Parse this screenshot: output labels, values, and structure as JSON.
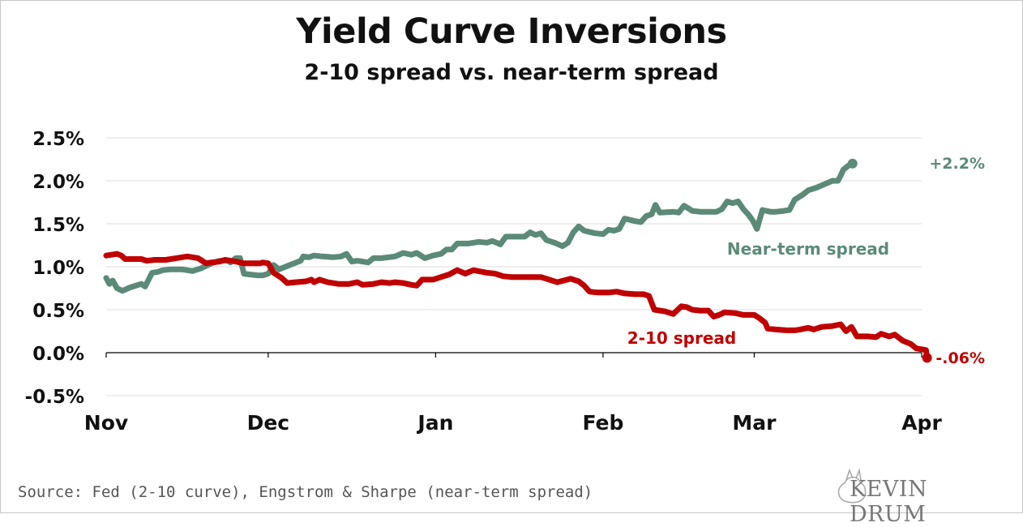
{
  "title": "Yield Curve Inversions",
  "subtitle": "2-10 spread vs. near-term spread",
  "source": "Source: Fed (2-10 curve), Engstrom & Sharpe (near-term spread)",
  "logo": "KEVIN DRUM",
  "colors": {
    "near_term": "#5b8a78",
    "two_ten": "#c00000",
    "grid": "#dedede",
    "axis": "#000000"
  },
  "chart_data": {
    "type": "line",
    "title": "Yield Curve Inversions",
    "subtitle": "2-10 spread vs. near-term spread",
    "xlabel": "",
    "ylabel": "",
    "x_ticks": [
      "Nov",
      "Dec",
      "Jan",
      "Feb",
      "Mar",
      "Apr"
    ],
    "x_tick_days": [
      0,
      30,
      61,
      92,
      120,
      151
    ],
    "y_ticks": [
      "2.5%",
      "2.0%",
      "1.5%",
      "1.0%",
      "0.5%",
      "0.0%",
      "-0.5%"
    ],
    "y_tick_values": [
      2.5,
      2.0,
      1.5,
      1.0,
      0.5,
      0.0,
      -0.5
    ],
    "ylim": [
      -0.5,
      2.5
    ],
    "xlim": [
      0,
      151
    ],
    "grid": true,
    "series": [
      {
        "name": "Near-term spread",
        "end_label": "+2.2%",
        "points": [
          [
            0,
            0.87
          ],
          [
            0.6,
            0.8
          ],
          [
            1.2,
            0.84
          ],
          [
            2,
            0.75
          ],
          [
            3,
            0.72
          ],
          [
            4.5,
            0.76
          ],
          [
            6.5,
            0.8
          ],
          [
            7.2,
            0.77
          ],
          [
            8.5,
            0.93
          ],
          [
            9.5,
            0.94
          ],
          [
            10.5,
            0.96
          ],
          [
            12,
            0.97
          ],
          [
            14,
            0.97
          ],
          [
            16,
            0.95
          ],
          [
            17.5,
            0.98
          ],
          [
            19.5,
            1.04
          ],
          [
            21,
            1.07
          ],
          [
            22.5,
            1.07
          ],
          [
            23,
            1.05
          ],
          [
            24,
            1.1
          ],
          [
            24.8,
            1.1
          ],
          [
            25.5,
            0.92
          ],
          [
            26.5,
            0.91
          ],
          [
            28,
            0.9
          ],
          [
            29,
            0.9
          ],
          [
            30,
            0.92
          ],
          [
            31,
            1.02
          ],
          [
            32,
            0.97
          ],
          [
            34,
            1.02
          ],
          [
            36,
            1.07
          ],
          [
            36.5,
            1.12
          ],
          [
            37.5,
            1.11
          ],
          [
            38.5,
            1.13
          ],
          [
            40,
            1.12
          ],
          [
            42,
            1.11
          ],
          [
            43.5,
            1.12
          ],
          [
            44.5,
            1.15
          ],
          [
            45.5,
            1.06
          ],
          [
            46.5,
            1.07
          ],
          [
            48.5,
            1.05
          ],
          [
            49.5,
            1.1
          ],
          [
            51,
            1.1
          ],
          [
            53.5,
            1.12
          ],
          [
            55,
            1.16
          ],
          [
            56.5,
            1.14
          ],
          [
            57.5,
            1.16
          ],
          [
            59,
            1.1
          ],
          [
            60.5,
            1.13
          ],
          [
            62,
            1.15
          ],
          [
            63,
            1.2
          ],
          [
            64,
            1.2
          ],
          [
            65,
            1.27
          ],
          [
            67,
            1.27
          ],
          [
            69,
            1.29
          ],
          [
            70.5,
            1.28
          ],
          [
            71.5,
            1.3
          ],
          [
            73,
            1.26
          ],
          [
            74,
            1.35
          ],
          [
            75.5,
            1.35
          ],
          [
            77.5,
            1.35
          ],
          [
            78.5,
            1.4
          ],
          [
            79.5,
            1.37
          ],
          [
            80.5,
            1.39
          ],
          [
            81.5,
            1.31
          ],
          [
            83,
            1.28
          ],
          [
            84.5,
            1.24
          ],
          [
            85.5,
            1.28
          ],
          [
            86.5,
            1.4
          ],
          [
            87.5,
            1.47
          ],
          [
            88.5,
            1.42
          ],
          [
            90.5,
            1.39
          ],
          [
            92,
            1.38
          ],
          [
            93,
            1.43
          ],
          [
            94,
            1.42
          ],
          [
            95,
            1.44
          ],
          [
            96,
            1.56
          ],
          [
            98,
            1.53
          ],
          [
            99,
            1.52
          ],
          [
            100,
            1.59
          ],
          [
            101,
            1.61
          ],
          [
            101.7,
            1.72
          ],
          [
            102.5,
            1.63
          ],
          [
            105,
            1.64
          ],
          [
            106,
            1.63
          ],
          [
            107,
            1.71
          ],
          [
            108.5,
            1.65
          ],
          [
            110,
            1.64
          ],
          [
            112,
            1.64
          ],
          [
            113,
            1.64
          ],
          [
            114,
            1.67
          ],
          [
            115,
            1.76
          ],
          [
            116,
            1.74
          ],
          [
            117,
            1.76
          ],
          [
            118,
            1.67
          ],
          [
            119,
            1.6
          ],
          [
            119.8,
            1.53
          ],
          [
            120.5,
            1.44
          ],
          [
            121.5,
            1.66
          ],
          [
            123,
            1.64
          ],
          [
            124,
            1.64
          ],
          [
            125.5,
            1.65
          ],
          [
            126.5,
            1.66
          ],
          [
            127.5,
            1.78
          ],
          [
            129,
            1.84
          ],
          [
            130,
            1.89
          ],
          [
            131.5,
            1.92
          ],
          [
            133,
            1.96
          ],
          [
            134.5,
            2.0
          ],
          [
            135.5,
            2.0
          ],
          [
            136,
            2.06
          ],
          [
            136.5,
            2.13
          ],
          [
            137.5,
            2.18
          ],
          [
            138.2,
            2.2
          ]
        ]
      },
      {
        "name": "2-10 spread",
        "end_label": "-.06%",
        "points": [
          [
            0,
            1.13
          ],
          [
            1,
            1.14
          ],
          [
            2,
            1.15
          ],
          [
            2.8,
            1.13
          ],
          [
            3.5,
            1.09
          ],
          [
            5,
            1.09
          ],
          [
            6.5,
            1.09
          ],
          [
            7.5,
            1.07
          ],
          [
            9,
            1.08
          ],
          [
            11,
            1.08
          ],
          [
            13,
            1.1
          ],
          [
            15,
            1.12
          ],
          [
            16,
            1.11
          ],
          [
            17,
            1.1
          ],
          [
            18.5,
            1.04
          ],
          [
            19.5,
            1.05
          ],
          [
            21,
            1.06
          ],
          [
            22,
            1.08
          ],
          [
            23,
            1.07
          ],
          [
            24,
            1.06
          ],
          [
            25.5,
            1.04
          ],
          [
            27,
            1.04
          ],
          [
            28.5,
            1.04
          ],
          [
            29,
            1.05
          ],
          [
            30,
            1.04
          ],
          [
            31,
            0.93
          ],
          [
            32.5,
            0.87
          ],
          [
            33.5,
            0.81
          ],
          [
            35,
            0.82
          ],
          [
            37,
            0.83
          ],
          [
            38,
            0.85
          ],
          [
            38.5,
            0.82
          ],
          [
            39.5,
            0.85
          ],
          [
            41,
            0.82
          ],
          [
            43,
            0.8
          ],
          [
            45,
            0.8
          ],
          [
            46.5,
            0.82
          ],
          [
            47.5,
            0.79
          ],
          [
            49.5,
            0.8
          ],
          [
            51,
            0.82
          ],
          [
            52.5,
            0.81
          ],
          [
            53.5,
            0.82
          ],
          [
            55,
            0.81
          ],
          [
            56.5,
            0.79
          ],
          [
            57.5,
            0.78
          ],
          [
            58.5,
            0.85
          ],
          [
            60.5,
            0.85
          ],
          [
            62,
            0.88
          ],
          [
            63.5,
            0.91
          ],
          [
            65,
            0.96
          ],
          [
            66.5,
            0.92
          ],
          [
            68,
            0.96
          ],
          [
            70.5,
            0.93
          ],
          [
            72,
            0.92
          ],
          [
            73.5,
            0.89
          ],
          [
            75,
            0.88
          ],
          [
            77,
            0.88
          ],
          [
            79,
            0.88
          ],
          [
            80.5,
            0.88
          ],
          [
            81.5,
            0.86
          ],
          [
            83.5,
            0.82
          ],
          [
            86,
            0.86
          ],
          [
            87.5,
            0.83
          ],
          [
            88.5,
            0.78
          ],
          [
            89.5,
            0.71
          ],
          [
            91,
            0.7
          ],
          [
            93,
            0.7
          ],
          [
            94.5,
            0.71
          ],
          [
            96,
            0.69
          ],
          [
            98,
            0.68
          ],
          [
            99.5,
            0.68
          ],
          [
            100.5,
            0.66
          ],
          [
            101.5,
            0.5
          ],
          [
            103.5,
            0.48
          ],
          [
            105,
            0.45
          ],
          [
            106.5,
            0.54
          ],
          [
            107.5,
            0.53
          ],
          [
            108.5,
            0.5
          ],
          [
            110,
            0.49
          ],
          [
            111.5,
            0.49
          ],
          [
            112.5,
            0.42
          ],
          [
            113.5,
            0.44
          ],
          [
            114.5,
            0.47
          ],
          [
            116.5,
            0.46
          ],
          [
            118,
            0.44
          ],
          [
            120,
            0.44
          ],
          [
            121,
            0.4
          ],
          [
            122,
            0.35
          ],
          [
            122.5,
            0.28
          ],
          [
            124,
            0.27
          ],
          [
            126,
            0.26
          ],
          [
            127.5,
            0.26
          ],
          [
            128.5,
            0.27
          ],
          [
            130,
            0.29
          ],
          [
            131,
            0.27
          ],
          [
            132.5,
            0.3
          ],
          [
            134.5,
            0.31
          ],
          [
            136,
            0.33
          ],
          [
            137,
            0.25
          ],
          [
            138,
            0.3
          ],
          [
            139,
            0.19
          ],
          [
            141,
            0.19
          ],
          [
            142.5,
            0.18
          ],
          [
            143.5,
            0.22
          ],
          [
            145,
            0.19
          ],
          [
            146,
            0.21
          ],
          [
            147.5,
            0.14
          ],
          [
            149,
            0.1
          ],
          [
            150,
            0.05
          ],
          [
            151,
            0.04
          ],
          [
            151.8,
            0.03
          ],
          [
            152,
            -0.06
          ]
        ]
      }
    ],
    "series_labels": [
      "Near-term spread",
      "2-10 spread"
    ]
  }
}
